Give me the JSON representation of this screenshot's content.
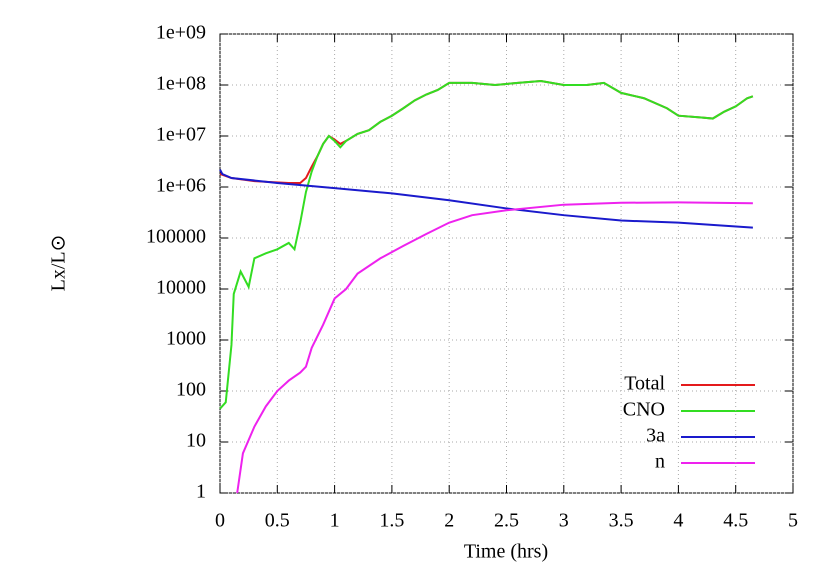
{
  "chart_data": {
    "type": "line",
    "xlabel": "Time (hrs)",
    "ylabel": "Lx/L⊙",
    "log_y": true,
    "grid": true,
    "legend": "lower right",
    "xlim": [
      0,
      5
    ],
    "xticks": [
      0,
      0.5,
      1,
      1.5,
      2,
      2.5,
      3,
      3.5,
      4,
      4.5,
      5
    ],
    "ylim": [
      1,
      1000000000
    ],
    "yticks": [
      1,
      10,
      100,
      1000,
      10000,
      100000,
      {
        "value": 1000000,
        "label": "1e+06"
      },
      {
        "value": 10000000,
        "label": "1e+07"
      },
      {
        "value": 100000000,
        "label": "1e+08"
      },
      {
        "value": 1000000000,
        "label": "1e+09"
      }
    ],
    "series": [
      {
        "name": "Total",
        "color": "#e41a1c",
        "x": [
          0,
          0.1,
          0.3,
          0.6,
          0.7,
          0.75,
          0.8,
          0.85,
          0.9,
          0.95,
          1.0,
          1.05,
          1.1,
          1.2,
          1.3,
          1.4,
          1.5,
          1.6,
          1.7,
          1.8,
          1.9,
          2.0,
          2.2,
          2.4,
          2.6,
          2.8,
          3.0,
          3.2,
          3.35,
          3.5,
          3.7,
          3.9,
          4.0,
          4.2,
          4.3,
          4.4,
          4.5,
          4.6,
          4.65
        ],
        "values": [
          1800000,
          1500000,
          1300000,
          1200000,
          1200000,
          1500000,
          2500000,
          4000000,
          7000000,
          10000000,
          8500000,
          7000000,
          8000000,
          11000000,
          13000000,
          19000000,
          25000000,
          35000000,
          50000000,
          65000000,
          80000000,
          110000000,
          110000000,
          100000000,
          110000000,
          120000000,
          100000000,
          100000000,
          110000000,
          70000000,
          55000000,
          35000000,
          25000000,
          23000000,
          22000000,
          30000000,
          38000000,
          55000000,
          60000000
        ]
      },
      {
        "name": "CNO",
        "color": "#33dd22",
        "x": [
          0,
          0.05,
          0.1,
          0.12,
          0.18,
          0.25,
          0.3,
          0.4,
          0.5,
          0.6,
          0.65,
          0.7,
          0.75,
          0.8,
          0.85,
          0.9,
          0.95,
          1.0,
          1.05,
          1.1,
          1.2,
          1.3,
          1.4,
          1.5,
          1.6,
          1.7,
          1.8,
          1.9,
          2.0,
          2.2,
          2.4,
          2.6,
          2.8,
          3.0,
          3.2,
          3.35,
          3.5,
          3.7,
          3.9,
          4.0,
          4.2,
          4.3,
          4.4,
          4.5,
          4.6,
          4.65
        ],
        "values": [
          45,
          60,
          800,
          8000,
          22000,
          11000,
          40000,
          50000,
          60000,
          80000,
          60000,
          200000,
          800000,
          2000000,
          4000000,
          7000000,
          10000000,
          8000000,
          6000000,
          8000000,
          11000000,
          13000000,
          19000000,
          25000000,
          35000000,
          50000000,
          65000000,
          80000000,
          110000000,
          110000000,
          100000000,
          110000000,
          120000000,
          100000000,
          100000000,
          110000000,
          70000000,
          55000000,
          35000000,
          25000000,
          23000000,
          22000000,
          30000000,
          38000000,
          55000000,
          60000000
        ]
      },
      {
        "name": "3a",
        "color": "#1a1acc",
        "x": [
          0,
          0.02,
          0.1,
          0.5,
          1.0,
          1.5,
          2.0,
          2.5,
          3.0,
          3.5,
          4.0,
          4.65
        ],
        "values": [
          2200000,
          1800000,
          1500000,
          1200000,
          950000,
          750000,
          550000,
          380000,
          280000,
          220000,
          200000,
          160000
        ]
      },
      {
        "name": "n",
        "color": "#ee22ee",
        "x": [
          0.15,
          0.2,
          0.3,
          0.4,
          0.5,
          0.6,
          0.7,
          0.75,
          0.8,
          0.9,
          1.0,
          1.1,
          1.2,
          1.4,
          1.6,
          1.8,
          2.0,
          2.2,
          2.5,
          3.0,
          3.5,
          4.0,
          4.65
        ],
        "values": [
          1,
          6,
          20,
          50,
          100,
          160,
          230,
          300,
          700,
          2000,
          6500,
          10000,
          20000,
          40000,
          70000,
          120000,
          200000,
          280000,
          350000,
          450000,
          490000,
          500000,
          480000
        ]
      }
    ]
  }
}
